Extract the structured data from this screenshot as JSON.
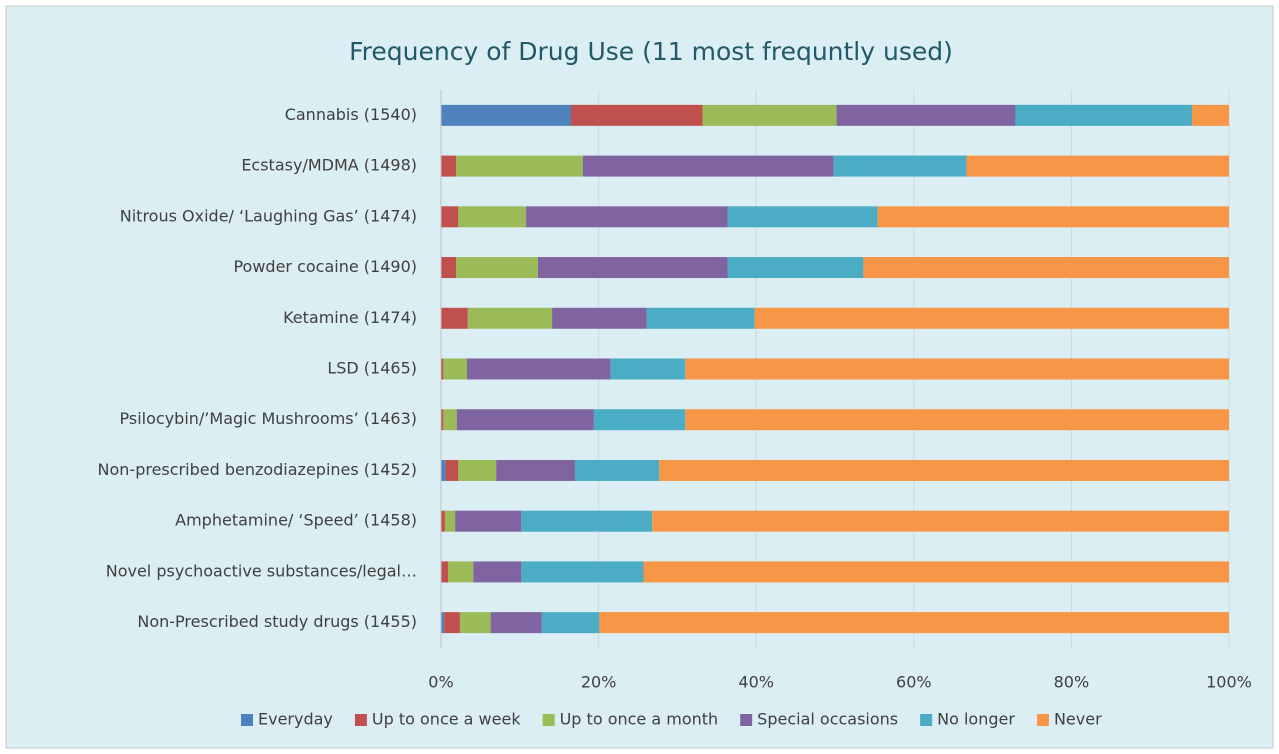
{
  "chart_data": {
    "type": "stacked-barh",
    "title": "Frequency of Drug Use (11 most frequntly used)",
    "categories": [
      "Cannabis (1540)",
      "Ecstasy/MDMA (1498)",
      "Nitrous Oxide/ ‘Laughing Gas’ (1474)",
      "Powder cocaine (1490)",
      "Ketamine (1474)",
      "LSD (1465)",
      "Psilocybin/’Magic Mushrooms’ (1463)",
      "Non-prescribed benzodiazepines (1452)",
      "Amphetamine/ ‘Speed’ (1458)",
      "Novel psychoactive substances/legal…",
      "Non-Prescribed study drugs (1455)"
    ],
    "series": [
      {
        "name": "Everyday",
        "color": "#4f81bd",
        "values": [
          16.5,
          0,
          0,
          0,
          0,
          0,
          0,
          0.6,
          0,
          0,
          0.4
        ]
      },
      {
        "name": "Up to once a week",
        "color": "#c0504d",
        "values": [
          16.7,
          1.9,
          2.2,
          1.9,
          3.4,
          0.3,
          0.3,
          1.6,
          0.5,
          0.9,
          2.0
        ]
      },
      {
        "name": "Up to once a month",
        "color": "#9bbb59",
        "values": [
          17.0,
          16.1,
          8.6,
          10.4,
          10.7,
          3.0,
          1.7,
          4.8,
          1.3,
          3.2,
          3.9
        ]
      },
      {
        "name": "Special occasions",
        "color": "#8064a2",
        "values": [
          22.7,
          31.8,
          25.6,
          24.1,
          12.0,
          18.2,
          17.4,
          10.0,
          8.4,
          6.1,
          6.5
        ]
      },
      {
        "name": "No longer",
        "color": "#4bacc6",
        "values": [
          22.4,
          16.9,
          19.0,
          17.2,
          13.7,
          9.5,
          11.6,
          10.7,
          16.6,
          15.5,
          7.3
        ]
      },
      {
        "name": "Never",
        "color": "#f79646",
        "values": [
          4.7,
          33.3,
          44.6,
          46.4,
          60.2,
          69.0,
          69.0,
          72.3,
          73.2,
          74.3,
          79.9
        ]
      }
    ],
    "xlim": [
      0,
      100
    ],
    "xticks": [
      {
        "value": 0,
        "label": "0%"
      },
      {
        "value": 20,
        "label": "20%"
      },
      {
        "value": 40,
        "label": "40%"
      },
      {
        "value": 60,
        "label": "60%"
      },
      {
        "value": 80,
        "label": "80%"
      },
      {
        "value": 100,
        "label": "100%"
      }
    ],
    "grid": true,
    "legend": "bottom"
  }
}
